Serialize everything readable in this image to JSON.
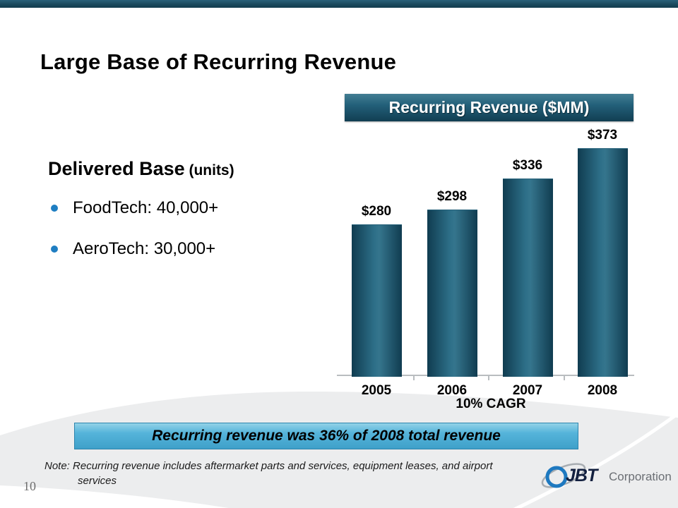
{
  "slide": {
    "title": "Large Base of Recurring Revenue",
    "page_number": "10",
    "note": {
      "line1": "Note: Recurring revenue includes aftermarket parts and services, equipment leases, and airport",
      "line2": "services"
    }
  },
  "delivered_base": {
    "heading": "Delivered Base",
    "heading_suffix": " (units)",
    "bullets": [
      {
        "label": "FoodTech: 40,000+"
      },
      {
        "label": "AeroTech: 30,000+"
      }
    ]
  },
  "chart_data": {
    "type": "bar",
    "title": "Recurring Revenue ($MM)",
    "categories": [
      "2005",
      "2006",
      "2007",
      "2008"
    ],
    "values": [
      280,
      298,
      336,
      373
    ],
    "value_labels": [
      "$280",
      "$298",
      "$336",
      "$373"
    ],
    "annotation": "10% CAGR",
    "ylim": [
      96,
      420
    ],
    "grid": false,
    "legend": false,
    "bar_color": "#1d5a72"
  },
  "banner": {
    "text": "Recurring revenue was 36% of 2008 total revenue"
  },
  "logo": {
    "name": "JBT",
    "suffix": "Corporation"
  },
  "colors": {
    "teal_dark": "#123d51",
    "teal_mid": "#2d6f88",
    "bullet_blue": "#1f7ec2",
    "banner_blue": "#4fb0d8",
    "swoosh_gray": "#ecedee",
    "axis_gray": "#b9bdc0"
  }
}
